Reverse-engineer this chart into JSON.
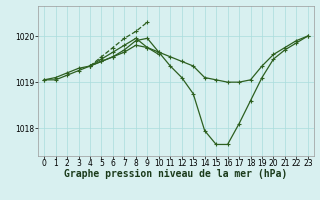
{
  "title": "Graphe pression niveau de la mer (hPa)",
  "background_color": "#d8f0f0",
  "line_color": "#2d6020",
  "xlim": [
    -0.5,
    23.5
  ],
  "ylim": [
    1017.4,
    1020.65
  ],
  "yticks": [
    1018,
    1019,
    1020
  ],
  "xticks": [
    0,
    1,
    2,
    3,
    4,
    5,
    6,
    7,
    8,
    9,
    10,
    11,
    12,
    13,
    14,
    15,
    16,
    17,
    18,
    19,
    20,
    21,
    22,
    23
  ],
  "lines": [
    {
      "x": [
        0,
        1,
        2,
        3,
        4,
        5,
        6,
        7,
        8,
        9,
        10,
        11,
        12,
        13,
        14,
        15,
        16,
        17,
        18,
        19,
        20,
        21,
        22,
        23
      ],
      "y": [
        1019.05,
        1019.05,
        1019.15,
        1019.25,
        1019.35,
        1019.45,
        1019.55,
        1019.7,
        1019.9,
        1019.95,
        1019.65,
        1019.35,
        1019.1,
        1018.75,
        1017.95,
        1017.65,
        1017.65,
        1018.1,
        1018.6,
        1019.1,
        1019.5,
        1019.7,
        1019.85,
        1020.0
      ],
      "style": "-",
      "lw": 0.9
    },
    {
      "x": [
        0,
        1,
        2,
        3,
        4,
        5,
        6,
        7,
        8,
        9,
        10,
        11,
        12,
        13,
        14,
        15,
        16,
        17,
        18,
        19,
        20,
        21,
        22,
        23
      ],
      "y": [
        1019.05,
        1019.1,
        1019.2,
        1019.3,
        1019.35,
        1019.45,
        1019.55,
        1019.65,
        1019.8,
        1019.75,
        1019.65,
        1019.55,
        1019.45,
        1019.35,
        1019.1,
        1019.05,
        1019.0,
        1019.0,
        1019.05,
        1019.35,
        1019.6,
        1019.75,
        1019.9,
        1020.0
      ],
      "style": "-",
      "lw": 0.9
    },
    {
      "x": [
        4,
        5,
        6,
        7,
        8,
        9
      ],
      "y": [
        1019.35,
        1019.55,
        1019.75,
        1019.95,
        1020.1,
        1020.3
      ],
      "style": "--",
      "lw": 0.9
    },
    {
      "x": [
        4,
        5,
        6,
        7,
        8,
        9,
        10
      ],
      "y": [
        1019.35,
        1019.5,
        1019.65,
        1019.8,
        1019.95,
        1019.75,
        1019.6
      ],
      "style": "-",
      "lw": 0.9
    }
  ],
  "grid_color": "#aadddd",
  "tick_fontsize": 5.5,
  "label_fontsize": 7.0
}
